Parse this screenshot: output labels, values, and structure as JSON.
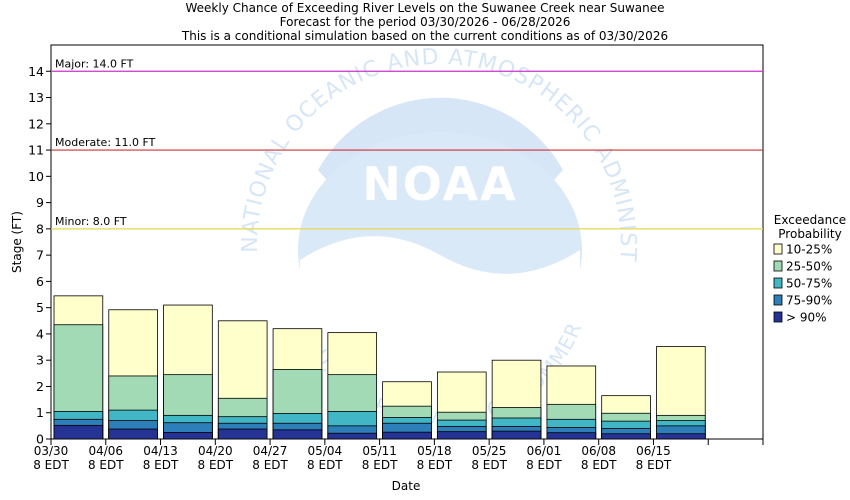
{
  "chart_data": {
    "type": "bar",
    "stacked": true,
    "title": "Weekly Chance of Exceeding River Levels on the Suwanee Creek near Suwanee",
    "subtitle": "Forecast for the period 03/30/2026 - 06/28/2026",
    "subtitle2": "This is a conditional simulation based on the current conditions as of 03/30/2026",
    "xlabel": "Date",
    "ylabel": "Stage (FT)",
    "ylim": [
      0,
      15
    ],
    "yticks": [
      0,
      1,
      2,
      3,
      4,
      5,
      6,
      7,
      8,
      9,
      10,
      11,
      12,
      13,
      14
    ],
    "grid": false,
    "legend_position": "right",
    "legend_title": [
      "Exceedance",
      "Probability"
    ],
    "x_ticks": [
      {
        "line1": "03/30",
        "line2": "8 EDT"
      },
      {
        "line1": "04/06",
        "line2": "8 EDT"
      },
      {
        "line1": "04/13",
        "line2": "8 EDT"
      },
      {
        "line1": "04/20",
        "line2": "8 EDT"
      },
      {
        "line1": "04/27",
        "line2": "8 EDT"
      },
      {
        "line1": "05/04",
        "line2": "8 EDT"
      },
      {
        "line1": "05/11",
        "line2": "8 EDT"
      },
      {
        "line1": "05/18",
        "line2": "8 EDT"
      },
      {
        "line1": "05/25",
        "line2": "8 EDT"
      },
      {
        "line1": "06/01",
        "line2": "8 EDT"
      },
      {
        "line1": "06/08",
        "line2": "8 EDT"
      },
      {
        "line1": "06/15",
        "line2": "8 EDT"
      },
      {
        "line1": "",
        "line2": ""
      }
    ],
    "weeks": 13,
    "thresholds": [
      {
        "label": "Major: 14.0 FT",
        "value": 14.0,
        "color": "#cc33cc"
      },
      {
        "label": "Moderate: 11.0 FT",
        "value": 11.0,
        "color": "#cc3333"
      },
      {
        "label": "Minor: 8.0 FT",
        "value": 8.0,
        "color": "#e6d84d"
      }
    ],
    "series": [
      {
        "name": "10-25%",
        "color": "#ffffcc",
        "values": [
          5.45,
          4.92,
          5.1,
          4.5,
          4.2,
          4.05,
          2.18,
          2.55,
          3.0,
          2.78,
          1.65,
          3.52
        ]
      },
      {
        "name": "25-50%",
        "color": "#a1dab4",
        "values": [
          4.35,
          2.4,
          2.45,
          1.55,
          2.65,
          2.45,
          1.25,
          1.02,
          1.2,
          1.32,
          0.98,
          0.9
        ]
      },
      {
        "name": "50-75%",
        "color": "#41b6c4",
        "values": [
          1.05,
          1.1,
          0.9,
          0.85,
          0.97,
          1.05,
          0.82,
          0.72,
          0.8,
          0.75,
          0.68,
          0.7
        ]
      },
      {
        "name": "75-90%",
        "color": "#2c7fb8",
        "values": [
          0.75,
          0.7,
          0.62,
          0.6,
          0.6,
          0.5,
          0.6,
          0.48,
          0.48,
          0.44,
          0.4,
          0.5
        ]
      },
      {
        "name": "> 90%",
        "color": "#253494",
        "values": [
          0.52,
          0.38,
          0.25,
          0.38,
          0.35,
          0.22,
          0.26,
          0.28,
          0.3,
          0.24,
          0.2,
          0.2
        ]
      }
    ],
    "watermark": {
      "logo_text": "NOAA",
      "ring_text": "NATIONAL OCEANIC AND ATMOSPHERIC ADMINISTRATION",
      "ring_text_2": "U.S. DEPARTMENT OF COMMERCE"
    }
  }
}
